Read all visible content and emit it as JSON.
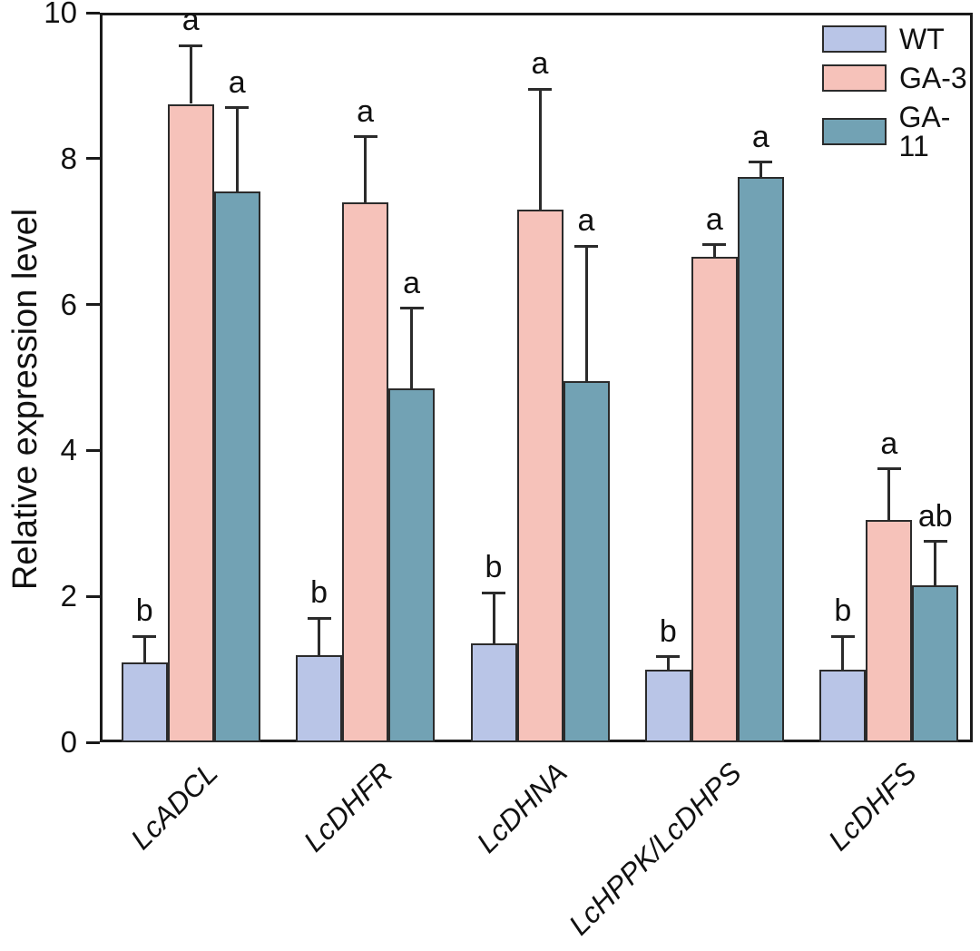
{
  "figure": {
    "background": "#ffffff",
    "axis_color": "#1a1a1a",
    "bar_border_color": "#2b2b2b"
  },
  "chart_data": {
    "type": "bar",
    "title": "",
    "xlabel": "",
    "ylabel": "Relative expression level",
    "ylim": [
      0,
      10
    ],
    "yticks": [
      0,
      2,
      4,
      6,
      8,
      10
    ],
    "grid": false,
    "legend_position": "top-right-inside",
    "error_bars": "upper-only",
    "categories": [
      "LcADCL",
      "LcDHFR",
      "LcDHNA",
      "LcHPPK/LcDHPS",
      "LcDHFS"
    ],
    "series": [
      {
        "name": "WT",
        "color": "#b9c5e7",
        "values": [
          1.1,
          1.2,
          1.35,
          1.0,
          1.0
        ],
        "errors": [
          0.35,
          0.5,
          0.7,
          0.17,
          0.45
        ],
        "sig_letters": [
          "b",
          "b",
          "b",
          "b",
          "b"
        ]
      },
      {
        "name": "GA-3",
        "color": "#f6c2ba",
        "values": [
          8.75,
          7.4,
          7.3,
          6.65,
          3.05
        ],
        "errors": [
          0.8,
          0.9,
          1.65,
          0.17,
          0.7
        ],
        "sig_letters": [
          "a",
          "a",
          "a",
          "a",
          "a"
        ]
      },
      {
        "name": "GA-11",
        "color": "#72a2b4",
        "values": [
          7.55,
          4.85,
          4.95,
          7.75,
          2.15
        ],
        "errors": [
          1.15,
          1.1,
          1.85,
          0.2,
          0.6
        ],
        "sig_letters": [
          "a",
          "a",
          "a",
          "a",
          "ab"
        ]
      }
    ]
  }
}
